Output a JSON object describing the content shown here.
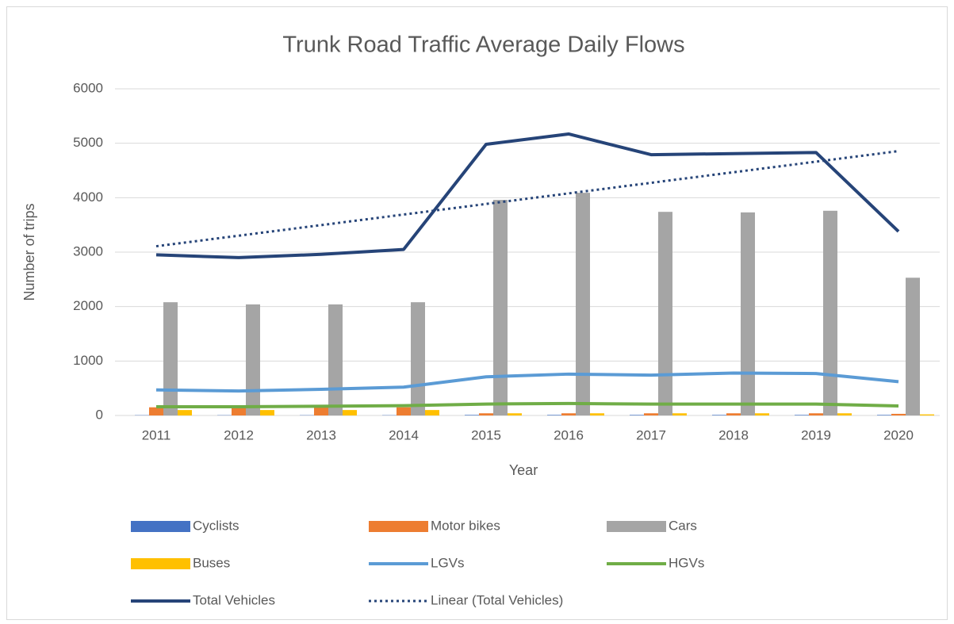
{
  "chart_data": {
    "type": "combo",
    "title": "Trunk Road Traffic Average Daily Flows",
    "x_label": "Year",
    "y_label": "Number of trips",
    "categories": [
      "2011",
      "2012",
      "2013",
      "2014",
      "2015",
      "2016",
      "2017",
      "2018",
      "2019",
      "2020"
    ],
    "ylim": [
      0,
      6000
    ],
    "yticks": [
      0,
      1000,
      2000,
      3000,
      4000,
      5000,
      6000
    ],
    "grid": true,
    "series": [
      {
        "name": "Cyclists",
        "kind": "bar",
        "color": "#4472c4",
        "values": [
          5,
          5,
          5,
          5,
          10,
          10,
          10,
          10,
          10,
          10
        ]
      },
      {
        "name": "Motor bikes",
        "kind": "bar",
        "color": "#ed7d31",
        "values": [
          150,
          150,
          150,
          150,
          40,
          40,
          40,
          40,
          40,
          30
        ]
      },
      {
        "name": "Cars",
        "kind": "bar",
        "color": "#a5a5a5",
        "values": [
          2080,
          2040,
          2040,
          2080,
          3960,
          4090,
          3740,
          3730,
          3760,
          2530
        ]
      },
      {
        "name": "Buses",
        "kind": "bar",
        "color": "#ffc000",
        "values": [
          100,
          100,
          100,
          100,
          40,
          40,
          40,
          40,
          40,
          20
        ]
      },
      {
        "name": "LGVs",
        "kind": "line",
        "color": "#5b9bd5",
        "values": [
          470,
          450,
          480,
          520,
          710,
          760,
          740,
          780,
          770,
          620
        ]
      },
      {
        "name": "HGVs",
        "kind": "line",
        "color": "#70ad47",
        "values": [
          160,
          160,
          170,
          180,
          210,
          220,
          210,
          210,
          210,
          175
        ]
      },
      {
        "name": "Total Vehicles",
        "kind": "line",
        "color": "#264478",
        "values": [
          2950,
          2900,
          2960,
          3050,
          4980,
          5170,
          4790,
          4810,
          4830,
          3380
        ]
      }
    ],
    "trendline": {
      "name": "Linear (Total Vehicles)",
      "series": 6,
      "color": "#264478"
    }
  }
}
